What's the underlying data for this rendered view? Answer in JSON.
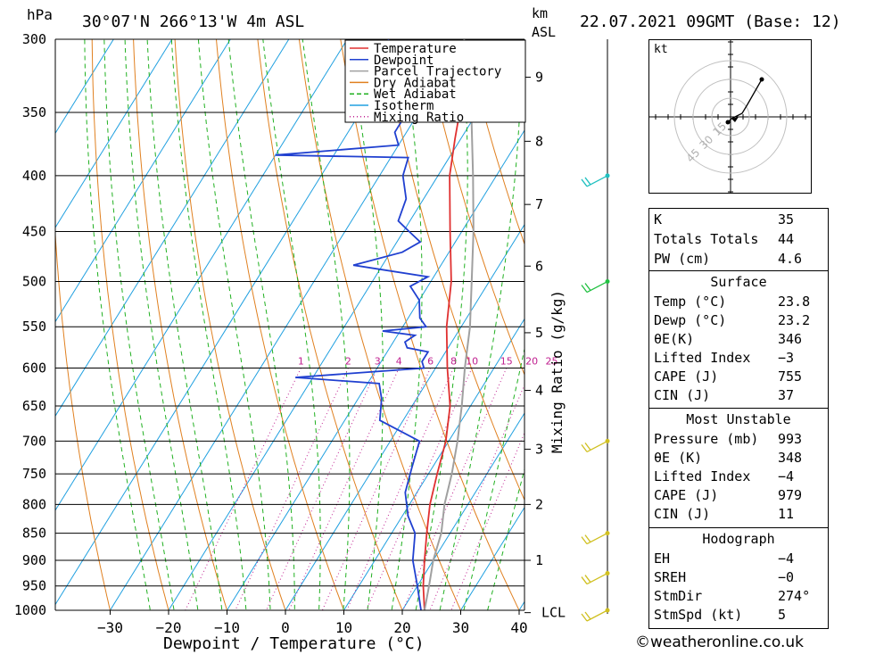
{
  "header": {
    "left_unit": "hPa",
    "location": "30°07'N  266°13'W  4m  ASL",
    "right_unit_km": "km",
    "right_unit_asl": "ASL",
    "datetime": "22.07.2021  09GMT  (Base: 12)"
  },
  "legend": {
    "items": [
      {
        "label": "Temperature",
        "color": "#e03030",
        "style": "solid"
      },
      {
        "label": "Dewpoint",
        "color": "#2040d0",
        "style": "solid"
      },
      {
        "label": "Parcel Trajectory",
        "color": "#a0a0a0",
        "style": "solid"
      },
      {
        "label": "Dry Adiabat",
        "color": "#e08020",
        "style": "solid"
      },
      {
        "label": "Wet Adiabat",
        "color": "#20b020",
        "style": "dashed"
      },
      {
        "label": "Isotherm",
        "color": "#20a0e0",
        "style": "solid"
      },
      {
        "label": "Mixing Ratio",
        "color": "#c02090",
        "style": "dotted"
      }
    ]
  },
  "chart_data": {
    "type": "line",
    "subtype": "skew-t log-p",
    "xlabel": "Dewpoint / Temperature (°C)",
    "ylabel_right": "Mixing Ratio (g/kg)",
    "x_ticks": [
      "−30",
      "−20",
      "−10",
      "0",
      "10",
      "20",
      "30",
      "40"
    ],
    "pressure_levels": [
      300,
      350,
      400,
      450,
      500,
      550,
      600,
      650,
      700,
      750,
      800,
      850,
      900,
      950,
      1000
    ],
    "km_ticks": [
      {
        "label": "9",
        "p": 325
      },
      {
        "label": "8",
        "p": 372
      },
      {
        "label": "7",
        "p": 425
      },
      {
        "label": "6",
        "p": 484
      },
      {
        "label": "5",
        "p": 557
      },
      {
        "label": "4",
        "p": 629
      },
      {
        "label": "3",
        "p": 712
      },
      {
        "label": "2",
        "p": 800
      },
      {
        "label": "1",
        "p": 900
      },
      {
        "label": "LCL",
        "p": 1005
      }
    ],
    "mixing_ratio_labels": [
      "1",
      "2",
      "3",
      "4",
      "6",
      "8",
      "10",
      "15",
      "20",
      "25"
    ],
    "series": [
      {
        "name": "Temperature",
        "color": "#e03030",
        "points": [
          [
            1000,
            23.8
          ],
          [
            950,
            21
          ],
          [
            900,
            18.5
          ],
          [
            850,
            16
          ],
          [
            800,
            13.5
          ],
          [
            750,
            11.5
          ],
          [
            700,
            9.5
          ],
          [
            650,
            6.5
          ],
          [
            600,
            2
          ],
          [
            550,
            -2.5
          ],
          [
            500,
            -6.5
          ],
          [
            450,
            -12
          ],
          [
            400,
            -18
          ],
          [
            370,
            -21
          ],
          [
            350,
            -23
          ]
        ]
      },
      {
        "name": "Dewpoint",
        "color": "#2040d0",
        "points": [
          [
            1000,
            23.2
          ],
          [
            950,
            20
          ],
          [
            900,
            16.5
          ],
          [
            850,
            14
          ],
          [
            820,
            11
          ],
          [
            780,
            8
          ],
          [
            740,
            6.5
          ],
          [
            700,
            5
          ],
          [
            670,
            -4
          ],
          [
            640,
            -6
          ],
          [
            620,
            -8
          ],
          [
            612,
            -23
          ],
          [
            600,
            -2
          ],
          [
            592,
            -3
          ],
          [
            580,
            -3
          ],
          [
            575,
            -7
          ],
          [
            568,
            -8
          ],
          [
            560,
            -7
          ],
          [
            555,
            -13
          ],
          [
            550,
            -6
          ],
          [
            540,
            -8
          ],
          [
            520,
            -10
          ],
          [
            505,
            -13
          ],
          [
            495,
            -11
          ],
          [
            483,
            -25
          ],
          [
            470,
            -18
          ],
          [
            460,
            -16
          ],
          [
            450,
            -19
          ],
          [
            440,
            -22
          ],
          [
            420,
            -23
          ],
          [
            400,
            -26
          ],
          [
            385,
            -27
          ],
          [
            383,
            -50
          ],
          [
            375,
            -30
          ],
          [
            365,
            -32
          ],
          [
            350,
            -32
          ],
          [
            335,
            -36
          ],
          [
            320,
            -37
          ],
          [
            300,
            -43
          ]
        ]
      },
      {
        "name": "Parcel Trajectory",
        "color": "#a0a0a0",
        "points": [
          [
            1000,
            23.8
          ],
          [
            950,
            22
          ],
          [
            900,
            20
          ],
          [
            850,
            18.5
          ],
          [
            800,
            16
          ],
          [
            750,
            14
          ],
          [
            700,
            11.5
          ],
          [
            650,
            8.5
          ],
          [
            600,
            5
          ],
          [
            550,
            1.5
          ],
          [
            500,
            -3
          ],
          [
            450,
            -8
          ],
          [
            400,
            -14
          ],
          [
            350,
            -21
          ],
          [
            300,
            -30
          ]
        ]
      }
    ],
    "wind_barbs": [
      {
        "p": 400,
        "color": "#20c0c0"
      },
      {
        "p": 500,
        "color": "#20c040"
      },
      {
        "p": 700,
        "color": "#d0c020"
      },
      {
        "p": 850,
        "color": "#d0c020"
      },
      {
        "p": 925,
        "color": "#d0c020"
      },
      {
        "p": 1000,
        "color": "#d0c020"
      }
    ]
  },
  "hodograph": {
    "unit": "kt",
    "rings": [
      "15",
      "30",
      "45"
    ]
  },
  "indices": {
    "general": [
      {
        "key": "K",
        "value": "35"
      },
      {
        "key": "Totals Totals",
        "value": "44"
      },
      {
        "key": "PW (cm)",
        "value": "4.6"
      }
    ],
    "surface": {
      "title": "Surface",
      "rows": [
        {
          "key": "Temp (°C)",
          "value": "23.8"
        },
        {
          "key": "Dewp (°C)",
          "value": "23.2"
        },
        {
          "key": "θE(K)",
          "value": "346"
        },
        {
          "key": "Lifted Index",
          "value": "−3"
        },
        {
          "key": "CAPE (J)",
          "value": "755"
        },
        {
          "key": "CIN (J)",
          "value": "37"
        }
      ]
    },
    "most_unstable": {
      "title": "Most Unstable",
      "rows": [
        {
          "key": "Pressure (mb)",
          "value": "993"
        },
        {
          "key": "θE (K)",
          "value": "348"
        },
        {
          "key": "Lifted Index",
          "value": "−4"
        },
        {
          "key": "CAPE (J)",
          "value": "979"
        },
        {
          "key": "CIN (J)",
          "value": "11"
        }
      ]
    },
    "hodograph": {
      "title": "Hodograph",
      "rows": [
        {
          "key": "EH",
          "value": "−4"
        },
        {
          "key": "SREH",
          "value": "−0"
        },
        {
          "key": "StmDir",
          "value": "274°"
        },
        {
          "key": "StmSpd (kt)",
          "value": "5"
        }
      ]
    }
  },
  "footer": "©weatheronline.co.uk"
}
